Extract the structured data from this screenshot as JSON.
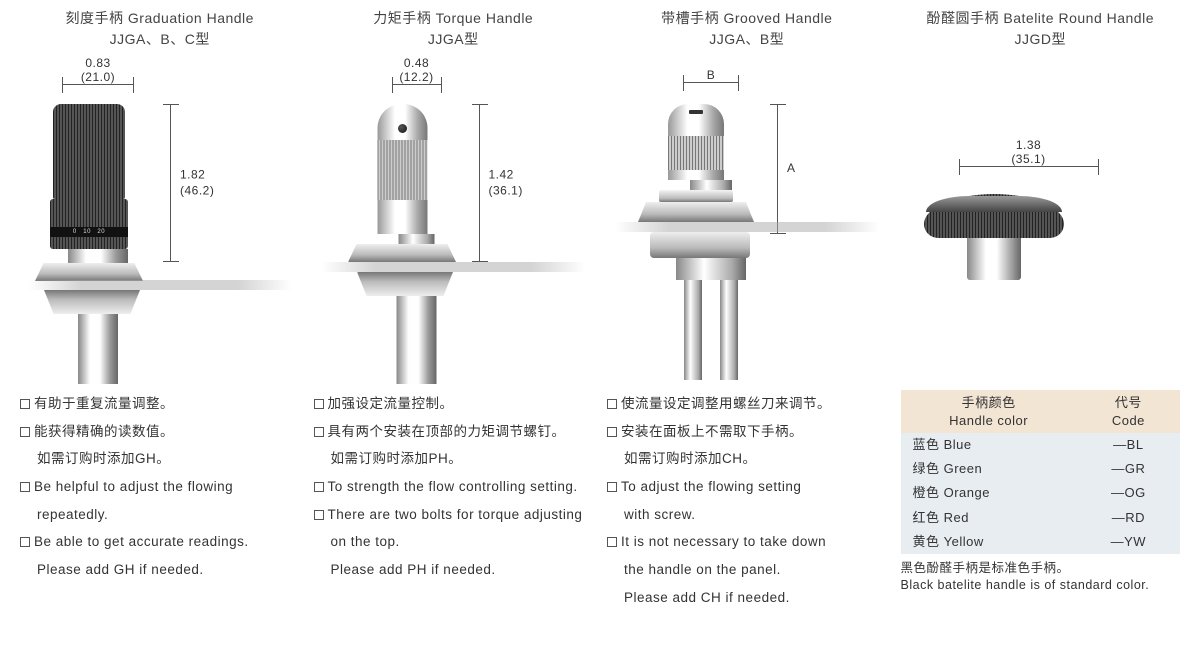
{
  "columns": [
    {
      "title_cn": "刻度手柄 Graduation Handle",
      "title_sub": "JJGA、B、C型",
      "dim_w1": "0.83",
      "dim_w2": "(21.0)",
      "dim_h1": "1.82",
      "dim_h2": "(46.2)",
      "desc": [
        {
          "b": 1,
          "t": "有助于重复流量调整。"
        },
        {
          "b": 1,
          "t": "能获得精确的读数值。"
        },
        {
          "b": 0,
          "t": "如需订购时添加GH。",
          "i": 1
        },
        {
          "b": 1,
          "t": "Be helpful to adjust the flowing"
        },
        {
          "b": 0,
          "t": "repeatedly.",
          "i": 1
        },
        {
          "b": 1,
          "t": "Be able to get accurate readings."
        },
        {
          "b": 0,
          "t": "Please add GH if needed.",
          "i": 1
        }
      ]
    },
    {
      "title_cn": "力矩手柄 Torque Handle",
      "title_sub": "JJGA型",
      "dim_w1": "0.48",
      "dim_w2": "(12.2)",
      "dim_h1": "1.42",
      "dim_h2": "(36.1)",
      "desc": [
        {
          "b": 1,
          "t": "加强设定流量控制。"
        },
        {
          "b": 1,
          "t": "具有两个安装在顶部的力矩调节螺钉。"
        },
        {
          "b": 0,
          "t": "如需订购时添加PH。",
          "i": 1
        },
        {
          "b": 1,
          "t": "To strength the flow controlling setting."
        },
        {
          "b": 1,
          "t": "There are two bolts for torque adjusting"
        },
        {
          "b": 0,
          "t": "on the top.",
          "i": 1
        },
        {
          "b": 0,
          "t": "Please add PH if needed.",
          "i": 1
        }
      ]
    },
    {
      "title_cn": "带槽手柄 Grooved Handle",
      "title_sub": "JJGA、B型",
      "dim_w1": "B",
      "dim_w2": "",
      "dim_h1": "A",
      "dim_h2": "",
      "desc": [
        {
          "b": 1,
          "t": "使流量设定调整用螺丝刀来调节。"
        },
        {
          "b": 1,
          "t": "安装在面板上不需取下手柄。"
        },
        {
          "b": 0,
          "t": "如需订购时添加CH。",
          "i": 1
        },
        {
          "b": 1,
          "t": "To adjust the flowing setting"
        },
        {
          "b": 0,
          "t": "with screw.",
          "i": 1
        },
        {
          "b": 1,
          "t": "It is not necessary to take down"
        },
        {
          "b": 0,
          "t": "the handle on the panel.",
          "i": 1
        },
        {
          "b": 0,
          "t": "Please add CH if needed.",
          "i": 1
        }
      ]
    },
    {
      "title_cn": "酚醛圆手柄 Batelite Round Handle",
      "title_sub": "JJGD型",
      "dim_w1": "1.38",
      "dim_w2": "(35.1)",
      "table": {
        "h1_cn": "手柄颜色",
        "h1_en": "Handle color",
        "h2_cn": "代号",
        "h2_en": "Code",
        "rows": [
          {
            "c": "蓝色 Blue",
            "d": "—BL"
          },
          {
            "c": "绿色 Green",
            "d": "—GR"
          },
          {
            "c": "橙色 Orange",
            "d": "—OG"
          },
          {
            "c": "红色 Red",
            "d": "—RD"
          },
          {
            "c": "黄色 Yellow",
            "d": "—YW"
          }
        ],
        "note_cn": "黑色酚醛手柄是标准色手柄。",
        "note_en": "Black batelite handle is of standard color."
      }
    }
  ],
  "style": {
    "fig_height": 330,
    "knurl": "repeating-linear-gradient(90deg,#555 0,#555 1px,#999 1px,#999 3px)",
    "metal_v": "linear-gradient(90deg,#888,#fefefe 25%,#fefefe 50%,#aaa 75%,#777)",
    "metal_h": "linear-gradient(180deg,#fefefe,#bbb 60%,#777)",
    "dark_knurl": "repeating-linear-gradient(90deg,#222 0,#222 1px,#555 1px,#555 3px)"
  }
}
